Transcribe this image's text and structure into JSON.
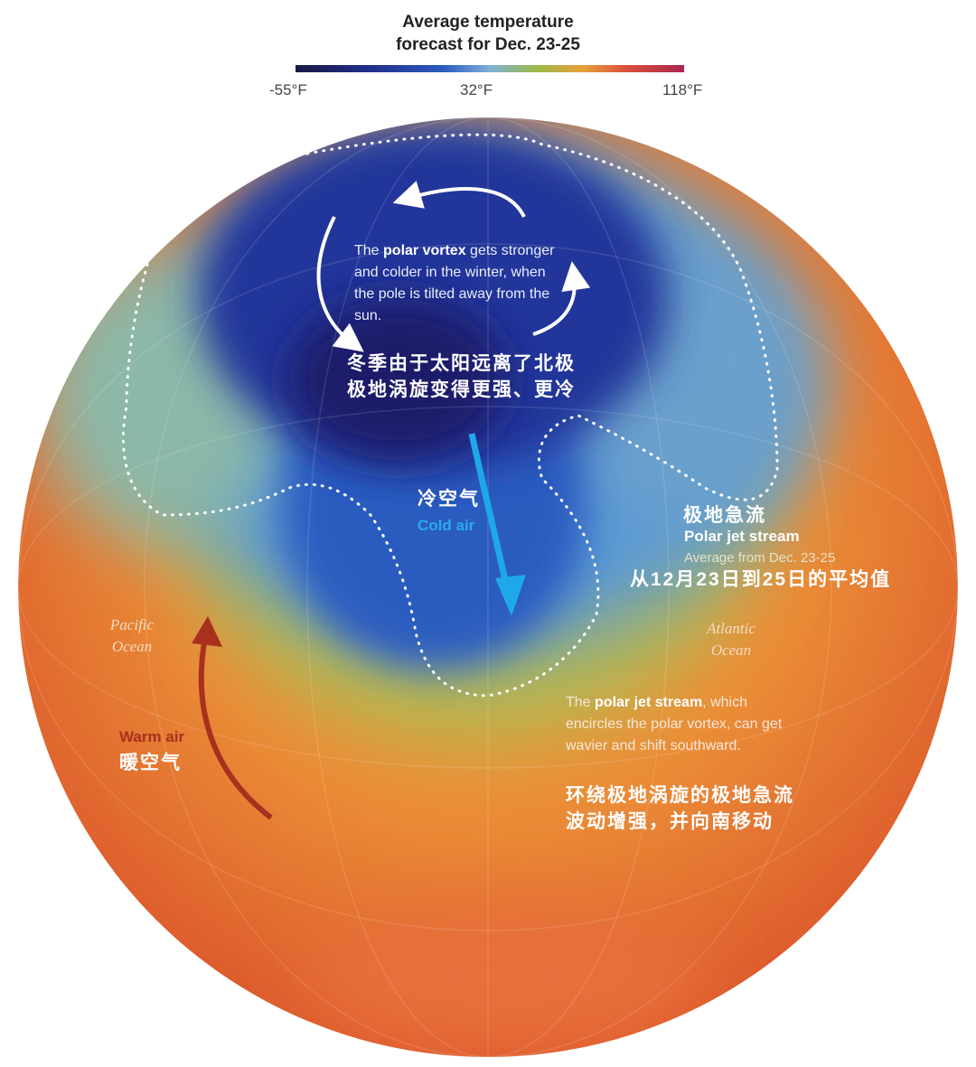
{
  "legend": {
    "title_line1": "Average temperature",
    "title_line2": "forecast for Dec. 23-25",
    "min": "-55°F",
    "mid": "32°F",
    "max": "118°F"
  },
  "colors": {
    "cold": "#1e2f8c",
    "cool": "#3d7fd0",
    "mild": "#a8b85a",
    "warm": "#e98a35",
    "hot": "#d8502e",
    "cold_air_arrow": "#1ea8e8",
    "warm_air_arrow": "#a8301e"
  },
  "annotations": {
    "vortex_en_1": "The ",
    "vortex_en_bold": "polar vortex",
    "vortex_en_2": " gets stronger and colder in the winter, when the pole is tilted away from the sun.",
    "vortex_cn_1": "冬季由于太阳远离了北极",
    "vortex_cn_2": "极地涡旋变得更强、更冷",
    "cold_cn": "冷空气",
    "cold_en": "Cold air",
    "jet_cn": "极地急流",
    "jet_en": "Polar jet stream",
    "jet_sub_en": "Average from Dec. 23-25",
    "jet_sub_cn": "从12月23日到25日的平均值",
    "pacific": "Pacific Ocean",
    "atlantic": "Atlantic Ocean",
    "warm_en": "Warm air",
    "warm_cn": "暖空气",
    "shift_en_1": "The ",
    "shift_en_bold": "polar jet stream",
    "shift_en_2": ", which encircles the polar vortex, can get wavier and shift southward.",
    "shift_cn_1": "环绕极地涡旋的极地急流",
    "shift_cn_2": "波动增强，并向南移动"
  }
}
